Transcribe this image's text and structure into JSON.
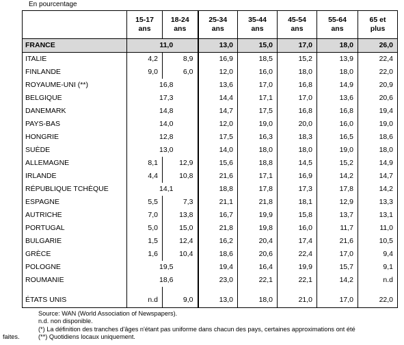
{
  "unit_label": "En pourcentage",
  "headers": [
    "",
    "15-17 ans",
    "18-24 ans",
    "25-34 ans",
    "35-44 ans",
    "45-54 ans",
    "55-64 ans",
    "65 et plus"
  ],
  "rows": [
    {
      "country": "FRANCE",
      "merged": "11,0",
      "v": [
        "13,0",
        "15,0",
        "17,0",
        "18,0",
        "26,0"
      ]
    },
    {
      "country": "ITALIE",
      "a": "4,2",
      "b": "8,9",
      "v": [
        "16,9",
        "18,5",
        "15,2",
        "13,9",
        "22,4"
      ]
    },
    {
      "country": "FINLANDE",
      "a": "9,0",
      "b": "6,0",
      "v": [
        "12,0",
        "16,0",
        "18,0",
        "18,0",
        "22,0"
      ]
    },
    {
      "country": "ROYAUME-UNI (**)",
      "merged": "16,8",
      "v": [
        "13,6",
        "17,0",
        "16,8",
        "14,9",
        "20,9"
      ]
    },
    {
      "country": "BELGIQUE",
      "merged": "17,3",
      "v": [
        "14,4",
        "17,1",
        "17,0",
        "13,6",
        "20,6"
      ]
    },
    {
      "country": "DANEMARK",
      "merged": "14,8",
      "v": [
        "14,7",
        "17,5",
        "16,8",
        "16,8",
        "19,4"
      ]
    },
    {
      "country": "PAYS-BAS",
      "merged": "14,0",
      "v": [
        "12,0",
        "19,0",
        "20,0",
        "16,0",
        "19,0"
      ]
    },
    {
      "country": "HONGRIE",
      "merged": "12,8",
      "v": [
        "17,5",
        "16,3",
        "18,3",
        "16,5",
        "18,6"
      ]
    },
    {
      "country": "SUÈDE",
      "merged": "13,0",
      "v": [
        "14,0",
        "18,0",
        "18,0",
        "19,0",
        "18,0"
      ]
    },
    {
      "country": "ALLEMAGNE",
      "a": "8,1",
      "b": "12,9",
      "v": [
        "15,6",
        "18,8",
        "14,5",
        "15,2",
        "14,9"
      ]
    },
    {
      "country": "IRLANDE",
      "a": "4,4",
      "b": "10,8",
      "v": [
        "21,6",
        "17,1",
        "16,9",
        "14,2",
        "14,7"
      ]
    },
    {
      "country": "RÉPUBLIQUE TCHÈQUE",
      "merged": "14,1",
      "v": [
        "18,8",
        "17,8",
        "17,3",
        "17,8",
        "14,2"
      ]
    },
    {
      "country": "ESPAGNE",
      "a": "5,5",
      "b": "7,3",
      "v": [
        "21,1",
        "21,8",
        "18,1",
        "12,9",
        "13,3"
      ]
    },
    {
      "country": "AUTRICHE",
      "a": "7,0",
      "b": "13,8",
      "v": [
        "16,7",
        "19,9",
        "15,8",
        "13,7",
        "13,1"
      ]
    },
    {
      "country": "PORTUGAL",
      "a": "5,0",
      "b": "15,0",
      "v": [
        "21,8",
        "19,8",
        "16,0",
        "11,7",
        "11,0"
      ]
    },
    {
      "country": "BULGARIE",
      "a": "1,5",
      "b": "12,4",
      "v": [
        "16,2",
        "20,4",
        "17,4",
        "21,6",
        "10,5"
      ]
    },
    {
      "country": "GRÈCE",
      "a": "1,6",
      "b": "10,4",
      "v": [
        "18,6",
        "20,6",
        "22,4",
        "17,0",
        "9,4"
      ]
    },
    {
      "country": "POLOGNE",
      "merged": "19,5",
      "v": [
        "19,4",
        "16,4",
        "19,9",
        "15,7",
        "9,1"
      ]
    },
    {
      "country": "ROUMANIE",
      "merged": "18,6",
      "v": [
        "23,0",
        "22,1",
        "22,1",
        "14,2",
        "n.d"
      ]
    }
  ],
  "last_row": {
    "country": "ÉTATS UNIS",
    "a": "n.d",
    "b": "9,0",
    "v": [
      "13,0",
      "18,0",
      "21,0",
      "17,0",
      "22,0"
    ]
  },
  "notes": [
    "Source: WAN (World Association of Newspapers).",
    "n.d. non disponible.",
    "(*) La définition des tranches d'âges n'étant pas uniforme dans chacun des pays, certaines approximations ont été",
    "(**) Quotidiens locaux uniquement."
  ],
  "notes_overflow": "faites."
}
